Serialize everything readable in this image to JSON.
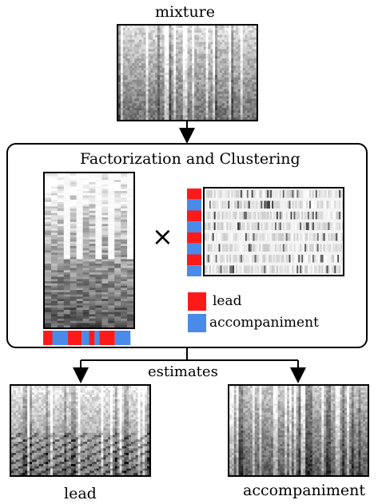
{
  "labels": {
    "mixture": "mixture",
    "box_title": "Factorization and Clustering",
    "times": "×",
    "estimates": "estimates",
    "lead_out": "lead",
    "accompaniment_out": "accompaniment"
  },
  "legend": [
    {
      "label": "lead",
      "color": "#ff1a1a"
    },
    {
      "label": "accompaniment",
      "color": "#4a8ae8"
    }
  ],
  "colors": {
    "lead": "#ff1a1a",
    "accompaniment": "#4a8ae8"
  },
  "cluster_bar_colors": [
    "lead",
    "accompaniment",
    "lead",
    "accompaniment",
    "lead",
    "accompaniment",
    "lead",
    "accompaniment"
  ],
  "activation_cluster_colors": [
    "lead",
    "accompaniment",
    "lead",
    "accompaniment",
    "lead",
    "accompaniment",
    "lead",
    "accompaniment"
  ]
}
